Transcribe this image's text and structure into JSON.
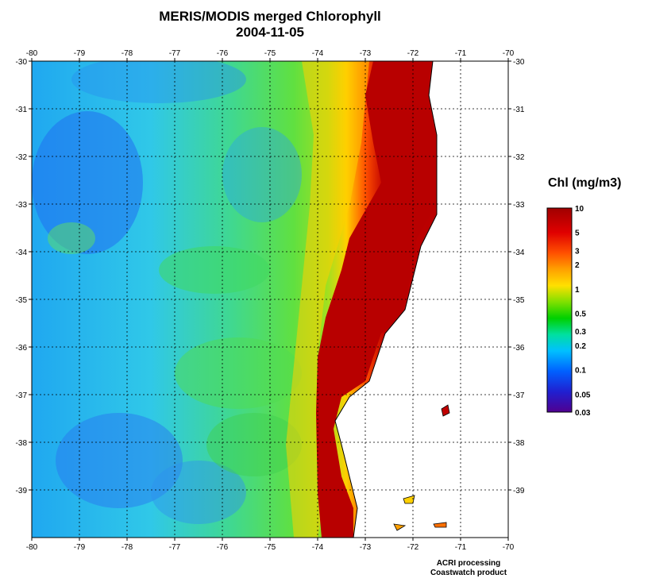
{
  "title": "MERIS/MODIS merged Chlorophyll",
  "date": "2004-11-05",
  "legend": {
    "title": "Chl (mg/m3)",
    "ticks": [
      {
        "label": "10",
        "value": 10
      },
      {
        "label": "5",
        "value": 5
      },
      {
        "label": "3",
        "value": 3
      },
      {
        "label": "2",
        "value": 2
      },
      {
        "label": "1",
        "value": 1
      },
      {
        "label": "0.5",
        "value": 0.5
      },
      {
        "label": "0.3",
        "value": 0.3
      },
      {
        "label": "0.2",
        "value": 0.2
      },
      {
        "label": "0.1",
        "value": 0.1
      },
      {
        "label": "0.05",
        "value": 0.05
      },
      {
        "label": "0.03",
        "value": 0.03
      }
    ],
    "colors": [
      "#a00000",
      "#e00000",
      "#ff5000",
      "#ffa000",
      "#ffe000",
      "#80e000",
      "#00d000",
      "#00e0a0",
      "#00c0ff",
      "#0060ff",
      "#2020d0",
      "#500090"
    ]
  },
  "map": {
    "lon_range": [
      -80,
      -70
    ],
    "lat_range": [
      -40,
      -30
    ],
    "lon_ticks": [
      "-80",
      "-79",
      "-78",
      "-77",
      "-76",
      "-75",
      "-74",
      "-73",
      "-72",
      "-71",
      "-70"
    ],
    "lat_ticks": [
      "-30",
      "-31",
      "-32",
      "-33",
      "-34",
      "-35",
      "-36",
      "-37",
      "-38",
      "-39"
    ],
    "gridlines": "dotted"
  },
  "footer": {
    "line1": "ACRI processing",
    "line2": "Coastwatch product"
  }
}
